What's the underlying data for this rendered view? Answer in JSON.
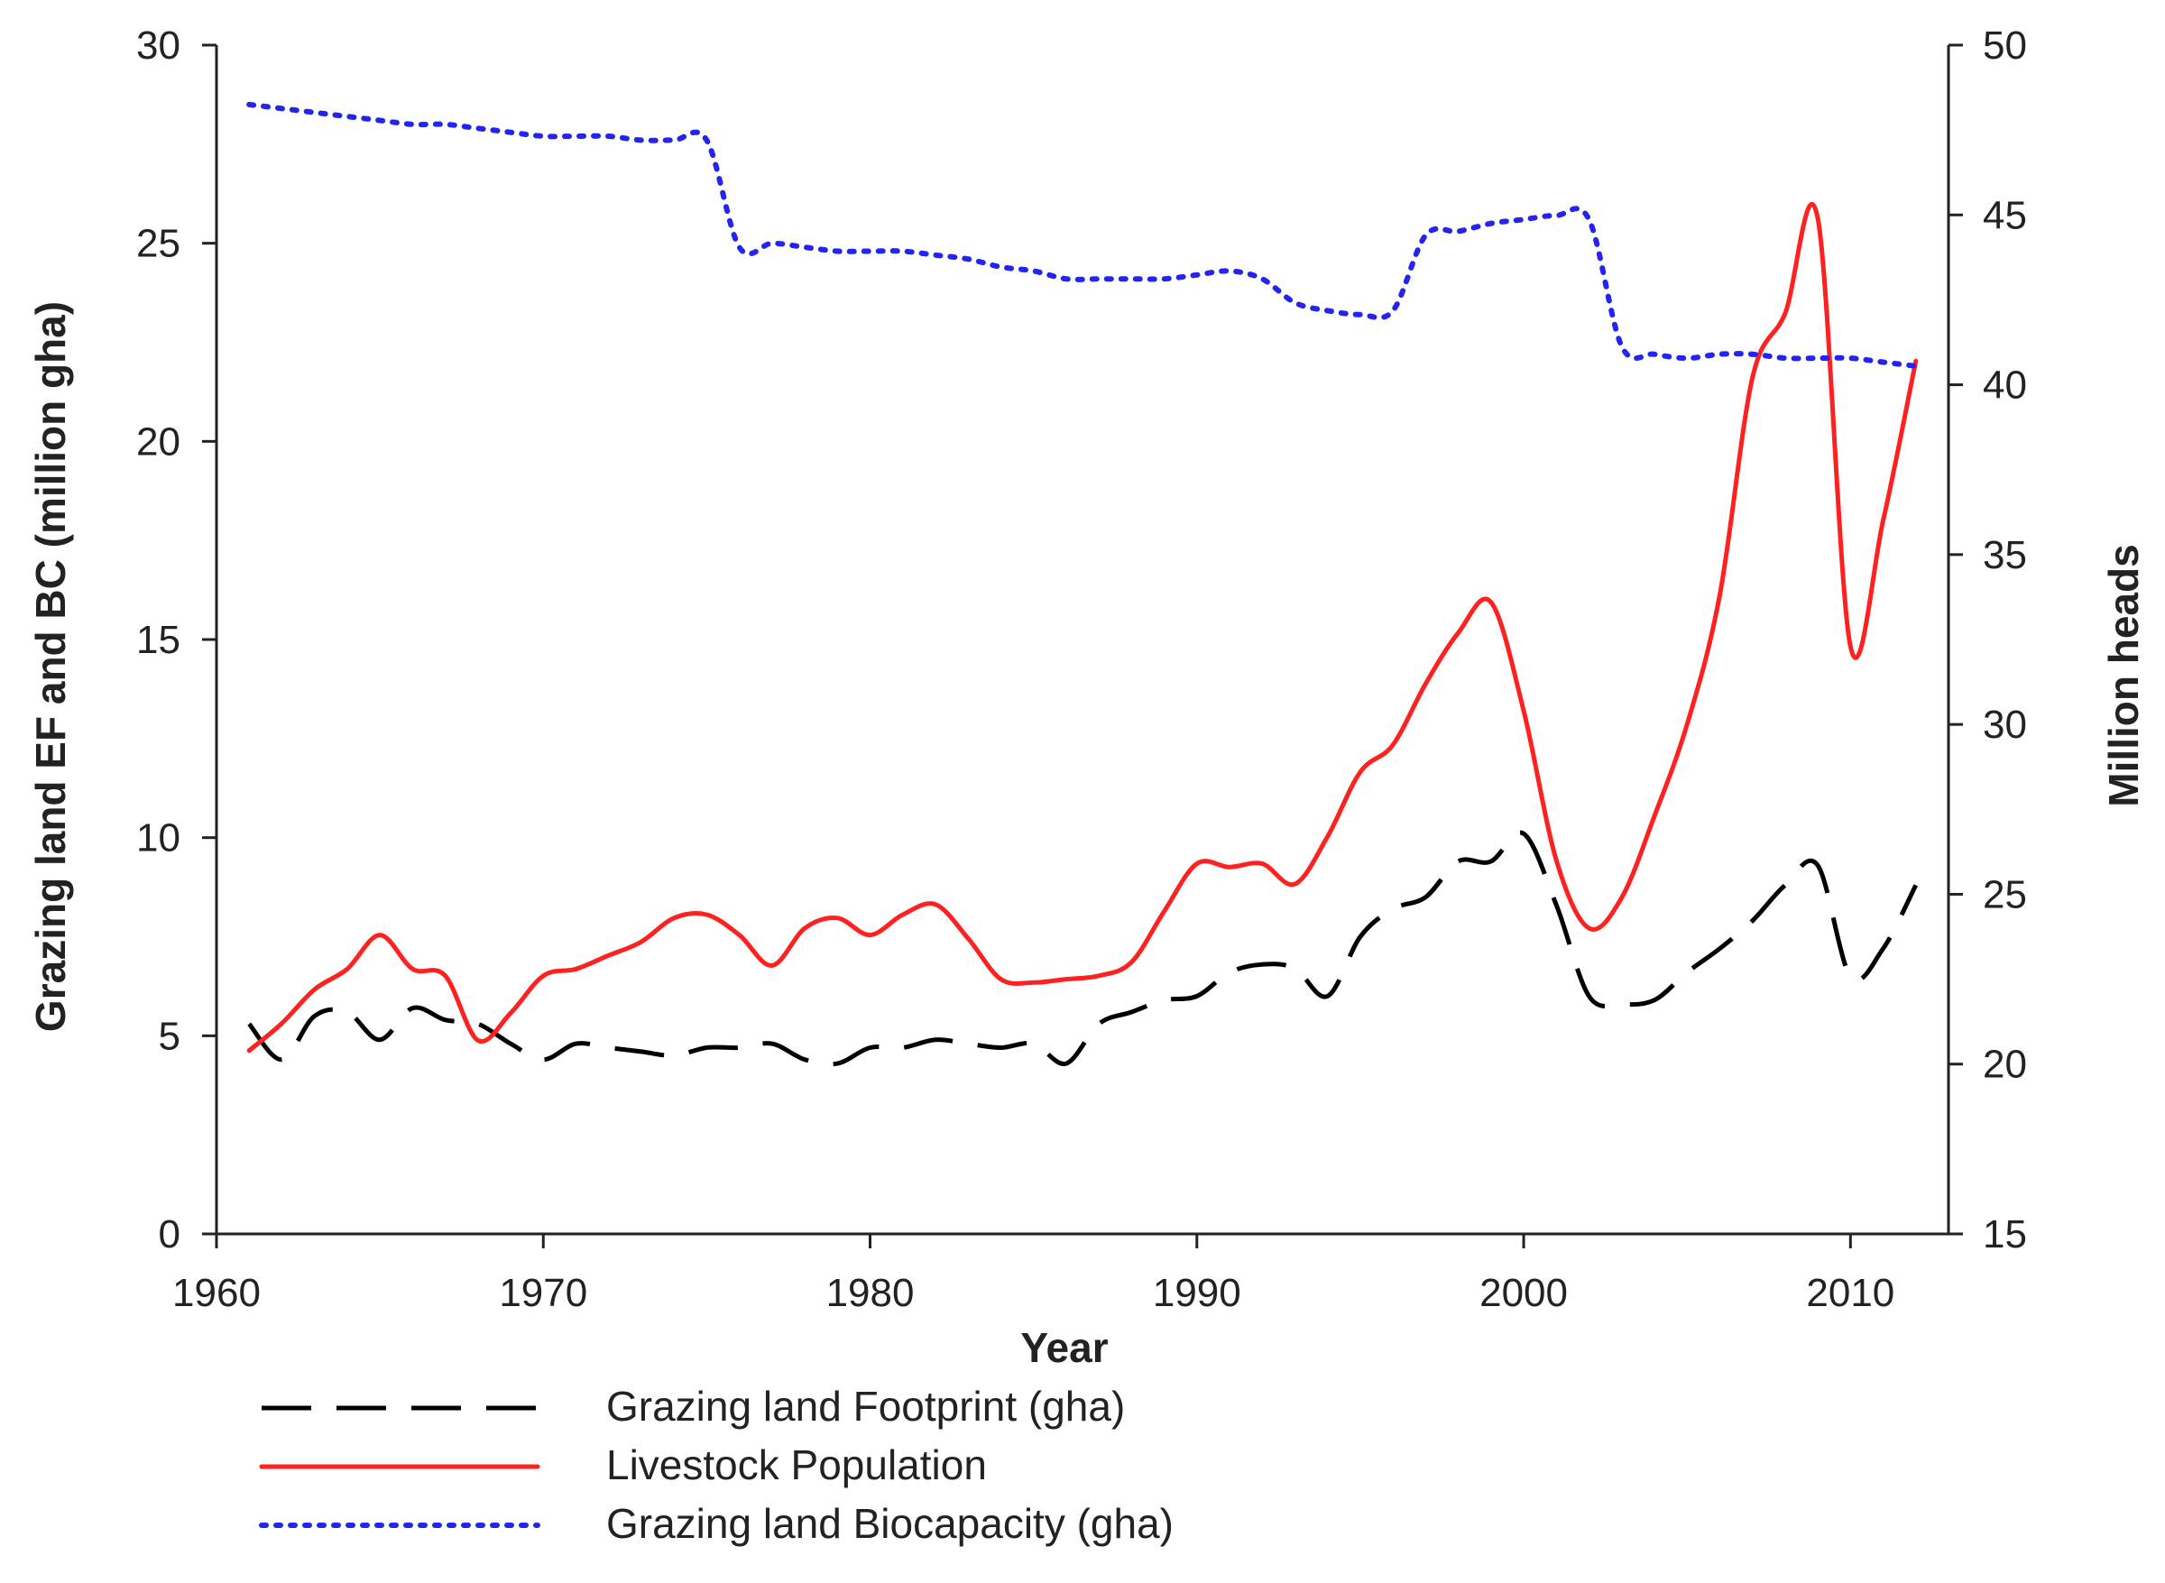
{
  "chart_data": {
    "type": "line",
    "title": "",
    "xlabel": "Year",
    "ylabel_left": "Grazing land EF and BC (million gha)",
    "ylabel_right": "Million heads",
    "xlim": [
      1960,
      2013
    ],
    "ylim_left": [
      0,
      30
    ],
    "ylim_right": [
      15,
      50
    ],
    "x_ticks": [
      1960,
      1970,
      1980,
      1990,
      2000,
      2010
    ],
    "y_ticks_left": [
      0,
      5,
      10,
      15,
      20,
      25,
      30
    ],
    "y_ticks_right": [
      15,
      20,
      25,
      30,
      35,
      40,
      45,
      50
    ],
    "grid": false,
    "legend_position": "bottom",
    "series": [
      {
        "name": "Grazing land Footprint (gha)",
        "axis": "left",
        "style": "dashed",
        "color": "#000000",
        "x": [
          1961,
          1962,
          1963,
          1964,
          1965,
          1966,
          1967,
          1968,
          1969,
          1970,
          1971,
          1972,
          1973,
          1974,
          1975,
          1976,
          1977,
          1978,
          1979,
          1980,
          1981,
          1982,
          1983,
          1984,
          1985,
          1986,
          1987,
          1988,
          1989,
          1990,
          1991,
          1992,
          1993,
          1994,
          1995,
          1996,
          1997,
          1998,
          1999,
          2000,
          2001,
          2002,
          2003,
          2004,
          2005,
          2006,
          2007,
          2008,
          2009,
          2010,
          2011,
          2012
        ],
        "values": [
          5.3,
          4.4,
          5.5,
          5.6,
          4.9,
          5.7,
          5.4,
          5.3,
          4.8,
          4.4,
          4.8,
          4.7,
          4.6,
          4.5,
          4.7,
          4.7,
          4.8,
          4.4,
          4.3,
          4.7,
          4.7,
          4.9,
          4.8,
          4.7,
          4.8,
          4.3,
          5.3,
          5.6,
          5.9,
          6.0,
          6.6,
          6.8,
          6.7,
          6.0,
          7.5,
          8.2,
          8.5,
          9.4,
          9.4,
          10.1,
          8.3,
          6.0,
          5.8,
          5.9,
          6.6,
          7.2,
          7.9,
          8.8,
          9.3,
          6.5,
          7.2,
          8.8
        ]
      },
      {
        "name": "Livestock Population",
        "axis": "right",
        "style": "solid",
        "color": "#ff2020",
        "x": [
          1961,
          1962,
          1963,
          1964,
          1965,
          1966,
          1967,
          1968,
          1969,
          1970,
          1971,
          1972,
          1973,
          1974,
          1975,
          1976,
          1977,
          1978,
          1979,
          1980,
          1981,
          1982,
          1983,
          1984,
          1985,
          1986,
          1987,
          1988,
          1989,
          1990,
          1991,
          1992,
          1993,
          1994,
          1995,
          1996,
          1997,
          1998,
          1999,
          2000,
          2001,
          2002,
          2003,
          2004,
          2005,
          2006,
          2007,
          2008,
          2009,
          2010,
          2011,
          2012
        ],
        "values": [
          20.4,
          21.2,
          22.2,
          22.8,
          23.8,
          22.8,
          22.6,
          20.7,
          21.5,
          22.6,
          22.8,
          23.2,
          23.6,
          24.3,
          24.4,
          23.8,
          22.9,
          24.0,
          24.3,
          23.8,
          24.4,
          24.7,
          23.7,
          22.5,
          22.4,
          22.5,
          22.6,
          23.0,
          24.5,
          25.9,
          25.8,
          25.9,
          25.3,
          26.7,
          28.6,
          29.4,
          31.2,
          32.7,
          33.6,
          30.4,
          26.0,
          24.0,
          24.9,
          27.3,
          30.0,
          33.8,
          40.2,
          42.1,
          44.9,
          32.3,
          36.0,
          40.7
        ]
      },
      {
        "name": "Grazing land Biocapacity (gha)",
        "axis": "left",
        "style": "dotted",
        "color": "#2424ee",
        "x": [
          1961,
          1962,
          1963,
          1964,
          1965,
          1966,
          1967,
          1968,
          1969,
          1970,
          1971,
          1972,
          1973,
          1974,
          1975,
          1976,
          1977,
          1978,
          1979,
          1980,
          1981,
          1982,
          1983,
          1984,
          1985,
          1986,
          1987,
          1988,
          1989,
          1990,
          1991,
          1992,
          1993,
          1994,
          1995,
          1996,
          1997,
          1998,
          1999,
          2000,
          2001,
          2002,
          2003,
          2004,
          2005,
          2006,
          2007,
          2008,
          2009,
          2010,
          2011,
          2012
        ],
        "values": [
          28.5,
          28.4,
          28.3,
          28.2,
          28.1,
          28.0,
          28.0,
          27.9,
          27.8,
          27.7,
          27.7,
          27.7,
          27.6,
          27.6,
          27.6,
          24.9,
          25.0,
          24.9,
          24.8,
          24.8,
          24.8,
          24.7,
          24.6,
          24.4,
          24.3,
          24.1,
          24.1,
          24.1,
          24.1,
          24.2,
          24.3,
          24.1,
          23.5,
          23.3,
          23.2,
          23.3,
          25.2,
          25.3,
          25.5,
          25.6,
          25.7,
          25.6,
          22.4,
          22.2,
          22.1,
          22.2,
          22.2,
          22.1,
          22.1,
          22.1,
          22.0,
          21.9
        ]
      }
    ]
  }
}
